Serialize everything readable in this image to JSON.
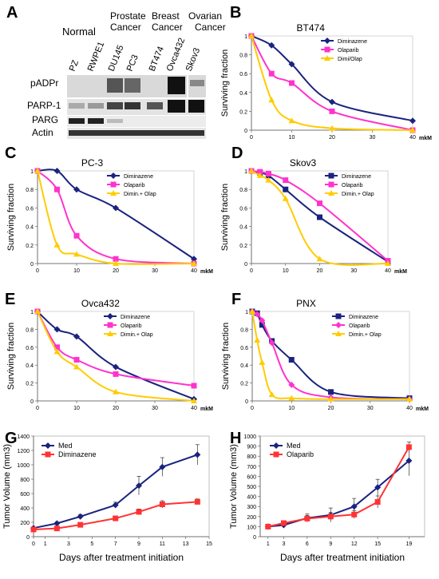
{
  "panel_a": {
    "letter": "A",
    "groups": [
      "Normal",
      "Prostate",
      "Cancer",
      "Breast",
      "Cancer",
      "Ovarian",
      "Cancer"
    ],
    "lanes": [
      "PZ",
      "RWPE1",
      "DU145",
      "PC3",
      "BT474",
      "Ovca432",
      "Skov3"
    ],
    "rows": [
      "pADPr",
      "PARP-1",
      "PARG",
      "Actin"
    ]
  },
  "chart_data": [
    {
      "panel": "B",
      "type": "line",
      "title": "BT474",
      "ylabel": "Surviving fraction",
      "xunit": "mkM",
      "xlim": [
        0,
        40
      ],
      "ylim": [
        0,
        1
      ],
      "xticks": [
        0,
        10,
        20,
        30,
        40
      ],
      "yticks": [
        0,
        0.2,
        0.4,
        0.6,
        0.8,
        1
      ],
      "ytick_labels": [
        "0",
        "0.2",
        "0.4",
        "0.6",
        "0.8",
        "1"
      ],
      "series": [
        {
          "name": "Diminazene",
          "color": "#1a237e",
          "marker": "diamond",
          "x": [
            0,
            5,
            10,
            20,
            40
          ],
          "y": [
            1,
            0.9,
            0.7,
            0.3,
            0.1
          ]
        },
        {
          "name": "Olaparib",
          "color": "#ff33cc",
          "marker": "square",
          "x": [
            0,
            5,
            10,
            20,
            40
          ],
          "y": [
            1,
            0.6,
            0.5,
            0.2,
            0.0
          ]
        },
        {
          "name": "Dimi/Olap",
          "color": "#ffcc00",
          "marker": "triangle",
          "x": [
            0,
            5,
            10,
            20,
            40
          ],
          "y": [
            1,
            0.32,
            0.1,
            0.02,
            0.0
          ]
        }
      ]
    },
    {
      "panel": "C",
      "type": "line",
      "title": "PC-3",
      "ylabel": "Surviving fraction",
      "xunit": "mkM",
      "xlim": [
        0,
        40
      ],
      "ylim": [
        0,
        1
      ],
      "xticks": [
        0,
        10,
        20,
        30,
        40
      ],
      "yticks": [
        0,
        0.2,
        0.4,
        0.6,
        0.8,
        1
      ],
      "ytick_labels": [
        "0",
        "0.2",
        "0.4",
        "0.6",
        "0.8",
        "1"
      ],
      "series": [
        {
          "name": "Diminazene",
          "color": "#1a237e",
          "marker": "diamond",
          "x": [
            0,
            5,
            10,
            20,
            40
          ],
          "y": [
            1,
            1,
            0.8,
            0.6,
            0.05
          ]
        },
        {
          "name": "Olaparib",
          "color": "#ff33cc",
          "marker": "square",
          "x": [
            0,
            5,
            10,
            20,
            40
          ],
          "y": [
            1,
            0.8,
            0.3,
            0.05,
            0.0
          ]
        },
        {
          "name": "Dimin.+ Olap",
          "color": "#ffcc00",
          "marker": "triangle",
          "x": [
            0,
            5,
            10,
            20,
            40
          ],
          "y": [
            1,
            0.2,
            0.1,
            0.0,
            0.0
          ]
        }
      ]
    },
    {
      "panel": "D",
      "type": "line",
      "title": "Skov3",
      "ylabel": "Surviving fraction",
      "xunit": "mkM",
      "xlim": [
        0,
        40
      ],
      "ylim": [
        0,
        1
      ],
      "xticks": [
        0,
        10,
        20,
        30,
        40
      ],
      "yticks": [
        0,
        0.2,
        0.4,
        0.6,
        0.8,
        1
      ],
      "ytick_labels": [
        "0",
        "0.2",
        "0.4",
        "0.6",
        "0.8",
        "1"
      ],
      "series": [
        {
          "name": "Diminazene",
          "color": "#1a237e",
          "marker": "square",
          "x": [
            0,
            2.5,
            5,
            10,
            20,
            40
          ],
          "y": [
            1,
            0.98,
            0.95,
            0.8,
            0.5,
            0.02
          ]
        },
        {
          "name": "Olaparib",
          "color": "#ff33cc",
          "marker": "square",
          "x": [
            0,
            2.5,
            5,
            10,
            20,
            40
          ],
          "y": [
            1,
            0.99,
            0.97,
            0.9,
            0.65,
            0.03
          ]
        },
        {
          "name": "Dimin.+ Olap",
          "color": "#ffcc00",
          "marker": "triangle",
          "x": [
            0,
            2.5,
            5,
            10,
            20,
            40
          ],
          "y": [
            1,
            0.95,
            0.9,
            0.7,
            0.05,
            0.0
          ]
        }
      ]
    },
    {
      "panel": "E",
      "type": "line",
      "title": "Ovca432",
      "ylabel": "Surviving fraction",
      "xunit": "mkM",
      "xlim": [
        0,
        40
      ],
      "ylim": [
        0,
        1
      ],
      "xticks": [
        0,
        10,
        20,
        30,
        40
      ],
      "yticks": [
        0,
        0.2,
        0.4,
        0.6,
        0.8,
        1
      ],
      "ytick_labels": [
        "0",
        "0.2",
        "0.4",
        "0.6",
        "0.8",
        "1"
      ],
      "series": [
        {
          "name": "Diminazene",
          "color": "#1a237e",
          "marker": "diamond",
          "x": [
            0,
            5,
            10,
            20,
            40
          ],
          "y": [
            1,
            0.8,
            0.72,
            0.38,
            0.02
          ]
        },
        {
          "name": "Olaparib",
          "color": "#ff33cc",
          "marker": "square",
          "x": [
            0,
            5,
            10,
            20,
            40
          ],
          "y": [
            1,
            0.6,
            0.46,
            0.3,
            0.17
          ]
        },
        {
          "name": "Dimin.+ Olap",
          "color": "#ffcc00",
          "marker": "triangle",
          "x": [
            0,
            5,
            10,
            20,
            40
          ],
          "y": [
            1,
            0.55,
            0.38,
            0.1,
            0.0
          ]
        }
      ]
    },
    {
      "panel": "F",
      "type": "line",
      "title": "PNX",
      "ylabel": "Surviving fraction",
      "xunit": "mkM",
      "xlim": [
        0,
        40
      ],
      "ylim": [
        0,
        1
      ],
      "xticks": [
        0,
        10,
        20,
        30,
        40
      ],
      "yticks": [
        0,
        0.2,
        0.4,
        0.6,
        0.8,
        1
      ],
      "ytick_labels": [
        "0",
        "0.2",
        "0.4",
        "0.6",
        "0.8",
        "1"
      ],
      "series": [
        {
          "name": "Diminazene",
          "color": "#1a237e",
          "marker": "square",
          "x": [
            0,
            1.25,
            2.5,
            5,
            10,
            20,
            40
          ],
          "y": [
            1,
            0.98,
            0.85,
            0.67,
            0.46,
            0.1,
            0.03
          ]
        },
        {
          "name": "Olaparib",
          "color": "#ff33cc",
          "marker": "diamond",
          "x": [
            0,
            1.25,
            2.5,
            5,
            10,
            20,
            40
          ],
          "y": [
            1,
            0.97,
            0.9,
            0.65,
            0.18,
            0.04,
            0.02
          ]
        },
        {
          "name": "Dimin.+ Olap",
          "color": "#ffcc00",
          "marker": "triangle",
          "x": [
            0,
            1.25,
            2.5,
            5,
            10,
            20,
            40
          ],
          "y": [
            1,
            0.68,
            0.43,
            0.07,
            0.03,
            0.02,
            0.02
          ]
        }
      ]
    },
    {
      "panel": "G",
      "type": "line",
      "xlabel": "Days after treatment initiation",
      "ylabel": "Tumor Volume (mm3)",
      "xlim": [
        0,
        15
      ],
      "ylim": [
        0,
        1400
      ],
      "xticks": [
        0,
        1,
        3,
        5,
        7,
        9,
        11,
        13,
        15
      ],
      "yticks": [
        0,
        200,
        400,
        600,
        800,
        1000,
        1200,
        1400
      ],
      "ytick_labels": [
        "0",
        "200",
        "400",
        "600",
        "800",
        "1000",
        "1200",
        "1400"
      ],
      "series": [
        {
          "name": "Med",
          "color": "#1a237e",
          "marker": "diamond",
          "x": [
            0,
            2,
            4,
            7,
            9,
            11,
            14
          ],
          "y": [
            120,
            185,
            280,
            440,
            710,
            970,
            1140
          ],
          "err": [
            15,
            20,
            30,
            40,
            130,
            130,
            140
          ]
        },
        {
          "name": "Diminazene",
          "color": "#ff3333",
          "marker": "square",
          "x": [
            0,
            2,
            4,
            7,
            9,
            11,
            14
          ],
          "y": [
            100,
            115,
            165,
            255,
            345,
            450,
            485
          ],
          "err": [
            10,
            15,
            20,
            30,
            40,
            50,
            40
          ]
        }
      ]
    },
    {
      "panel": "H",
      "type": "line",
      "xlabel": "Days after treatment initiation",
      "ylabel": "Tumor Volume (mm3)",
      "xlim": [
        0,
        21
      ],
      "ylim": [
        0,
        1000
      ],
      "xticks": [
        1,
        3,
        6,
        9,
        12,
        15,
        19
      ],
      "yticks": [
        0,
        100,
        200,
        300,
        400,
        500,
        600,
        700,
        800,
        900,
        1000
      ],
      "ytick_labels": [
        "0",
        "100",
        "200",
        "300",
        "400",
        "500",
        "600",
        "700",
        "800",
        "900",
        "1000"
      ],
      "series": [
        {
          "name": "Med",
          "color": "#1a237e",
          "marker": "diamond",
          "x": [
            1,
            3,
            6,
            9,
            12,
            15,
            19
          ],
          "y": [
            100,
            115,
            185,
            215,
            300,
            490,
            755
          ],
          "err": [
            10,
            20,
            40,
            70,
            80,
            80,
            150
          ]
        },
        {
          "name": "Olaparib",
          "color": "#ff3333",
          "marker": "square",
          "x": [
            1,
            3,
            6,
            9,
            12,
            15,
            19
          ],
          "y": [
            100,
            135,
            180,
            200,
            220,
            345,
            890
          ],
          "err": [
            10,
            20,
            30,
            40,
            40,
            60,
            50
          ]
        }
      ]
    }
  ]
}
